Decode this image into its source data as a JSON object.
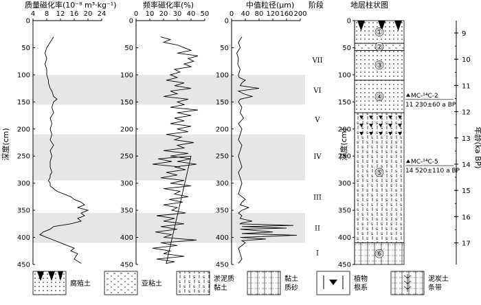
{
  "depth_label": "深度(cm)",
  "age_label": "年龄(ka BP)",
  "depth_ticks": [
    "0",
    "50",
    "100",
    "150",
    "200",
    "250",
    "300",
    "350",
    "400",
    "450"
  ],
  "age_ticks": [
    "9",
    "10",
    "11",
    "12",
    "13",
    "14",
    "15",
    "16",
    "17"
  ],
  "panels": {
    "chi": {
      "title": "质量磁化率(10⁻⁸ m³·kg⁻¹)",
      "ticks": [
        "4",
        "8",
        "12",
        "16",
        "20",
        "24"
      ]
    },
    "fd": {
      "title": "频率磁化率(%)",
      "ticks": [
        "0",
        "10",
        "20",
        "30",
        "40",
        "50"
      ]
    },
    "gs": {
      "title": "中值粒径(μm)",
      "ticks": [
        "0",
        "40",
        "80",
        "120",
        "160",
        "200"
      ]
    },
    "stage": {
      "title": "阶段"
    },
    "column": {
      "title": "地层柱状图"
    }
  },
  "stages": [
    "VII",
    "VI",
    "V",
    "IV",
    "III",
    "II",
    "I"
  ],
  "layers": [
    "①",
    "②",
    "③",
    "④",
    "⑤",
    "⑥"
  ],
  "dates": [
    {
      "code": "MC-¹⁴C-2",
      "value": "11 230±60 a BP"
    },
    {
      "code": "MC-¹⁴C-5",
      "value": "14 520±110 a BP"
    }
  ],
  "legend": [
    {
      "label": "腐殖土"
    },
    {
      "label": "亚粘土"
    },
    {
      "label": "淤泥质黏土",
      "lines": [
        "淤泥质",
        "黏土"
      ]
    },
    {
      "label": "黏土质砂",
      "lines": [
        "黏土",
        "质砂"
      ]
    },
    {
      "label": "植物根系",
      "lines": [
        "植物",
        "根系"
      ]
    },
    {
      "label": "泥炭土条带",
      "lines": [
        "泥炭土",
        "条带"
      ]
    }
  ],
  "chart_data": [
    {
      "type": "line",
      "title": "质量磁化率(10⁻⁸ m³·kg⁻¹)",
      "xlim": [
        4,
        24
      ],
      "ylim": [
        450,
        0
      ],
      "ylabel": "深度(cm)",
      "x": [
        10,
        9,
        8,
        7.5,
        8,
        7.5,
        8,
        8,
        8.5,
        8.5,
        9,
        9.5,
        10,
        11,
        10,
        9.5,
        10,
        9,
        9.5,
        9,
        9.5,
        9,
        10,
        9,
        9.5,
        9,
        9,
        9.5,
        9,
        9,
        8.5,
        9,
        9,
        10,
        11,
        13,
        15,
        16,
        18,
        19,
        17,
        20,
        18,
        19,
        17,
        18,
        15,
        10,
        9,
        7,
        6,
        8,
        10,
        12,
        14,
        16,
        15,
        17,
        16,
        18
      ],
      "y": [
        30,
        40,
        50,
        60,
        70,
        80,
        90,
        100,
        110,
        115,
        125,
        130,
        140,
        145,
        150,
        160,
        170,
        180,
        190,
        200,
        210,
        220,
        230,
        240,
        250,
        260,
        270,
        280,
        285,
        290,
        295,
        300,
        305,
        310,
        315,
        320,
        325,
        330,
        335,
        340,
        345,
        350,
        355,
        360,
        365,
        370,
        375,
        380,
        385,
        390,
        395,
        400,
        405,
        410,
        415,
        420,
        425,
        430,
        440,
        448
      ]
    },
    {
      "type": "line",
      "title": "频率磁化率(%)",
      "xlim": [
        0,
        50
      ],
      "ylim": [
        450,
        0
      ],
      "ylabel": "深度(cm)",
      "x": [
        18,
        25,
        20,
        30,
        35,
        40,
        30,
        45,
        38,
        42,
        35,
        40,
        28,
        32,
        25,
        30,
        22,
        35,
        28,
        40,
        25,
        30,
        20,
        38,
        30,
        35,
        25,
        45,
        30,
        40,
        28,
        35,
        25,
        40,
        30,
        38,
        22,
        33,
        28,
        42,
        30,
        35,
        20,
        38,
        25,
        40,
        30,
        44,
        28,
        36,
        22,
        30,
        18,
        35,
        25,
        40,
        20,
        32,
        28,
        38,
        24,
        34,
        20,
        30,
        26,
        36,
        15,
        28,
        20,
        35,
        18,
        30,
        14,
        26,
        20,
        44,
        18,
        30,
        12,
        25,
        20,
        35,
        15,
        28,
        22,
        40,
        16,
        26,
        12,
        32
      ],
      "y": [
        30,
        35,
        40,
        45,
        50,
        55,
        60,
        65,
        70,
        75,
        80,
        85,
        90,
        95,
        100,
        105,
        110,
        115,
        120,
        125,
        130,
        135,
        140,
        145,
        150,
        155,
        160,
        165,
        170,
        175,
        180,
        185,
        190,
        195,
        200,
        205,
        210,
        215,
        220,
        225,
        230,
        235,
        240,
        245,
        250,
        255,
        260,
        265,
        270,
        275,
        280,
        285,
        290,
        295,
        300,
        305,
        310,
        315,
        320,
        325,
        330,
        335,
        340,
        345,
        350,
        355,
        360,
        365,
        370,
        375,
        380,
        385,
        390,
        395,
        400,
        405,
        410,
        415,
        420,
        425,
        430,
        435,
        440,
        445,
        448,
        250,
        255,
        260,
        265,
        270
      ]
    },
    {
      "type": "line",
      "title": "中值粒径(μm)",
      "xlim": [
        0,
        200
      ],
      "ylim": [
        450,
        0
      ],
      "ylabel": "深度(cm)",
      "x": [
        30,
        20,
        25,
        15,
        20,
        18,
        25,
        20,
        22,
        40,
        30,
        25,
        80,
        20,
        35,
        60,
        25,
        20,
        30,
        25,
        35,
        20,
        30,
        25,
        20,
        30,
        25,
        20,
        25,
        30,
        20,
        25,
        30,
        25,
        20,
        40,
        30,
        25,
        50,
        30,
        20,
        30,
        25,
        60,
        30,
        25,
        180,
        30,
        160,
        25,
        120,
        30,
        190,
        25,
        100,
        30,
        40,
        20,
        25,
        30,
        20
      ],
      "y": [
        30,
        40,
        50,
        60,
        70,
        80,
        90,
        100,
        105,
        110,
        115,
        120,
        125,
        130,
        135,
        140,
        145,
        150,
        160,
        170,
        180,
        190,
        200,
        210,
        220,
        230,
        240,
        250,
        260,
        270,
        280,
        290,
        300,
        310,
        320,
        330,
        335,
        340,
        345,
        350,
        355,
        360,
        365,
        370,
        373,
        375,
        378,
        380,
        383,
        385,
        390,
        393,
        396,
        400,
        403,
        406,
        410,
        420,
        430,
        440,
        448
      ]
    }
  ]
}
